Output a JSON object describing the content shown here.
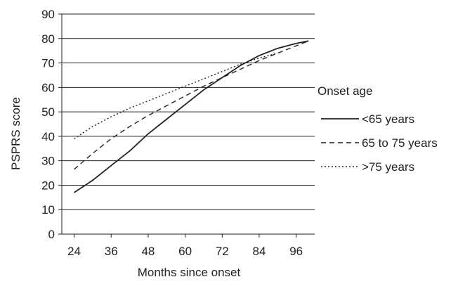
{
  "chart_data": {
    "type": "line",
    "title": "",
    "xlabel": "Months since onset",
    "ylabel": "PSPRS score",
    "xlim": [
      20,
      102
    ],
    "ylim": [
      0,
      90
    ],
    "x_ticks": [
      24,
      36,
      48,
      60,
      72,
      84,
      96
    ],
    "y_ticks": [
      0,
      10,
      20,
      30,
      40,
      50,
      60,
      70,
      80,
      90
    ],
    "grid": "horizontal",
    "legend": {
      "title": "Onset age",
      "position": "right"
    },
    "series": [
      {
        "name": "<65 years",
        "style": "solid",
        "color": "#222222",
        "x": [
          24,
          30,
          36,
          42,
          48,
          54,
          60,
          66,
          72,
          78,
          84,
          90,
          96,
          100
        ],
        "y": [
          17,
          22,
          28,
          34,
          41,
          47,
          53,
          59,
          64,
          69,
          73,
          76,
          78,
          79
        ]
      },
      {
        "name": "65 to 75 years",
        "style": "dashed",
        "color": "#222222",
        "x": [
          24,
          30,
          36,
          42,
          48,
          54,
          60,
          66,
          72,
          78,
          84,
          90,
          96,
          100
        ],
        "y": [
          26.5,
          33,
          39,
          44,
          48.5,
          52.5,
          56.5,
          60.5,
          64,
          67.5,
          71,
          74,
          77,
          79
        ]
      },
      {
        "name": ">75 years",
        "style": "dotted",
        "color": "#222222",
        "x": [
          24,
          30,
          36,
          42,
          48,
          54,
          60,
          66,
          72,
          78,
          84,
          90
        ],
        "y": [
          39,
          44,
          48,
          51.5,
          54.5,
          57.5,
          60.5,
          63.5,
          66.5,
          69.5,
          72,
          74
        ]
      }
    ]
  }
}
